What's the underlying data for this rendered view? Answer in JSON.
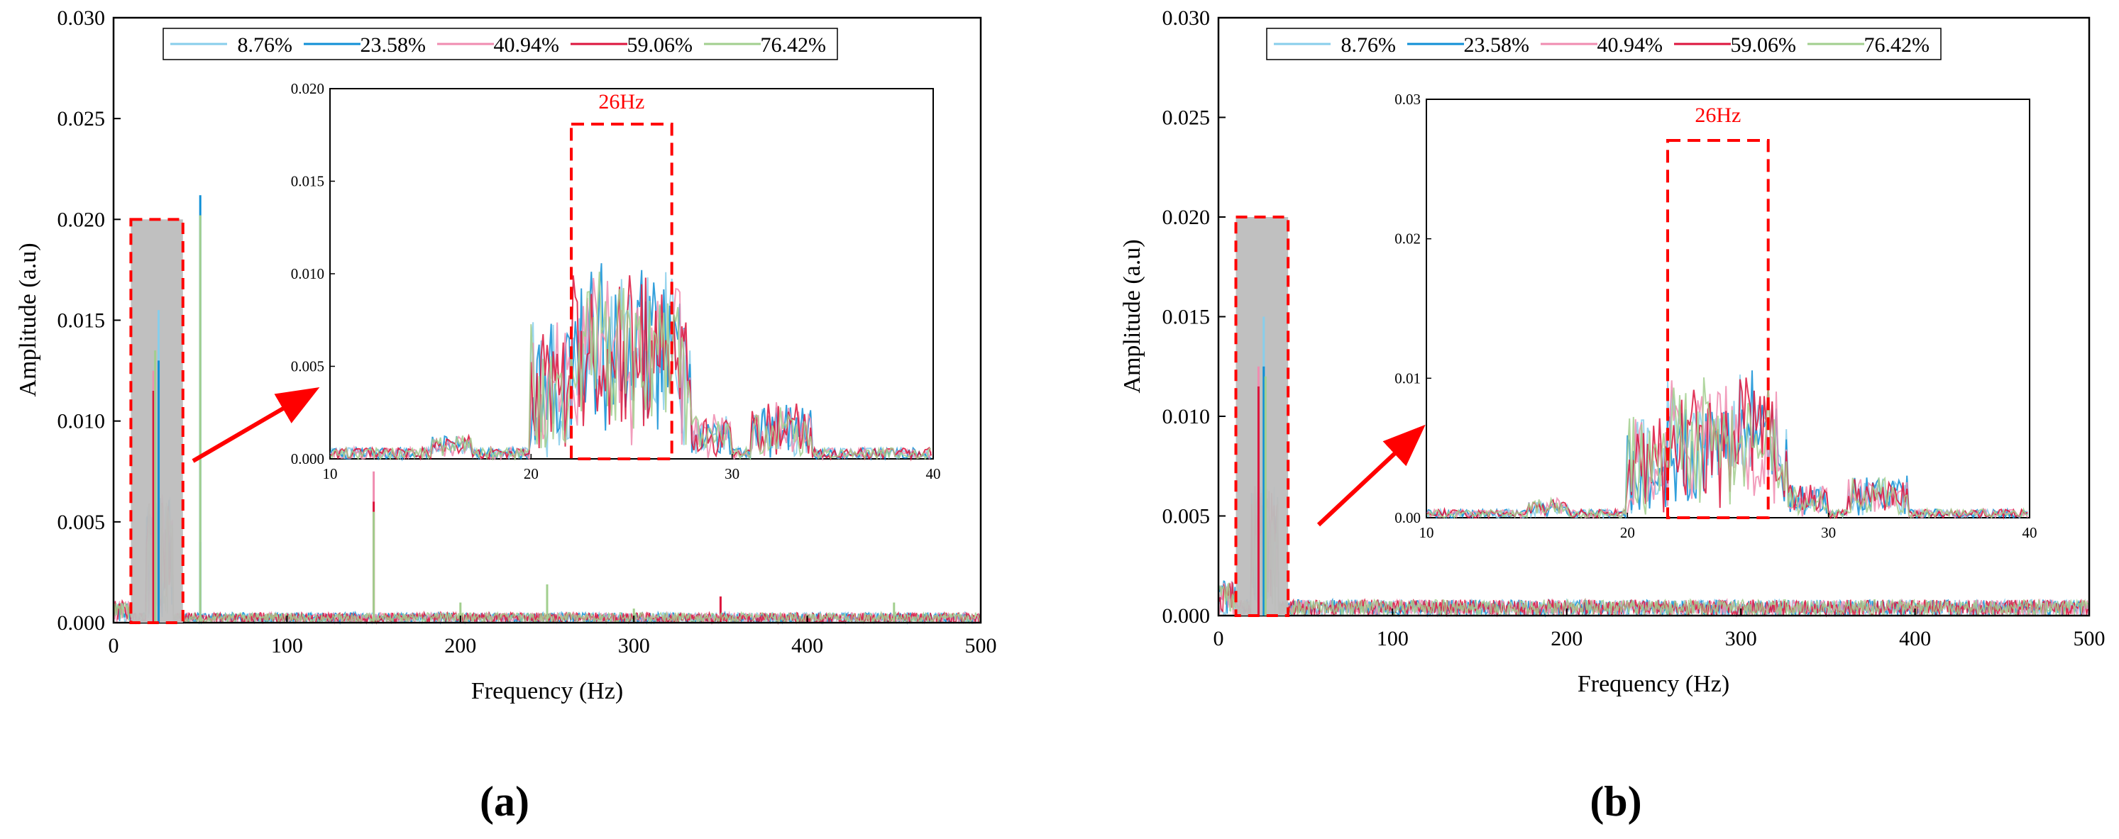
{
  "colors": {
    "series": [
      "#87CEEB",
      "#0F8FD6",
      "#F08CB0",
      "#DC143C",
      "#A2CF8E"
    ],
    "highlight_box": "#FF0000",
    "shade": "#BDBDBD",
    "arrow": "#FF0000",
    "axes": "#000000"
  },
  "legend_labels": [
    "8.76%",
    "23.58%",
    "40.94%",
    "59.06%",
    "76.42%"
  ],
  "panels": [
    {
      "label": "(a)",
      "xlabel": "Frequency (Hz)",
      "ylabel": "Amplitude (a.u)",
      "xticks": [
        "0",
        "100",
        "200",
        "300",
        "400",
        "500"
      ],
      "yticks": [
        "0.000",
        "0.005",
        "0.010",
        "0.015",
        "0.020",
        "0.025",
        "0.030"
      ],
      "inset": {
        "xticks": [
          "10",
          "20",
          "30",
          "40"
        ],
        "yticks": [
          "0.000",
          "0.005",
          "0.010",
          "0.015",
          "0.020"
        ],
        "annotation": "26Hz"
      }
    },
    {
      "label": "(b)",
      "xlabel": "Frequency (Hz)",
      "ylabel": "Amplitude (a.u)",
      "xticks": [
        "0",
        "100",
        "200",
        "300",
        "400",
        "500"
      ],
      "yticks": [
        "0.000",
        "0.005",
        "0.010",
        "0.015",
        "0.020",
        "0.025",
        "0.030"
      ],
      "inset": {
        "xticks": [
          "10",
          "20",
          "30",
          "40"
        ],
        "yticks": [
          "0.00",
          "0.01",
          "0.02",
          "0.03"
        ],
        "annotation": "26Hz"
      }
    }
  ],
  "chart_data": [
    {
      "type": "line",
      "title": "",
      "xlabel": "Frequency (Hz)",
      "ylabel": "Amplitude (a.u)",
      "xlim": [
        0,
        500
      ],
      "ylim": [
        0,
        0.03
      ],
      "legend": "top-left",
      "series_names": [
        "8.76%",
        "23.58%",
        "40.94%",
        "59.06%",
        "76.42%"
      ],
      "shaded_region": {
        "x": [
          10,
          40
        ],
        "y": [
          0,
          0.02
        ]
      },
      "peaks": [
        {
          "name": "8.76%",
          "points": [
            [
              26,
              0.0155
            ],
            [
              50,
              0.004
            ]
          ]
        },
        {
          "name": "23.58%",
          "points": [
            [
              26,
              0.013
            ],
            [
              50,
              0.0212
            ]
          ]
        },
        {
          "name": "40.94%",
          "points": [
            [
              23,
              0.0125
            ],
            [
              150,
              0.0075
            ]
          ]
        },
        {
          "name": "59.06%",
          "points": [
            [
              23,
              0.0115
            ],
            [
              150,
              0.006
            ],
            [
              350,
              0.0013
            ]
          ]
        },
        {
          "name": "76.42%",
          "points": [
            [
              24,
              0.0135
            ],
            [
              50,
              0.0202
            ],
            [
              150,
              0.0055
            ],
            [
              200,
              0.001
            ],
            [
              250,
              0.0019
            ],
            [
              300,
              0.0007
            ],
            [
              450,
              0.001
            ]
          ]
        }
      ],
      "baseline": [
        0,
        0.0005
      ],
      "inset": {
        "xlim": [
          10,
          40
        ],
        "ylim": [
          0,
          0.02
        ],
        "annotation": "26Hz",
        "box_x": [
          22,
          27
        ]
      }
    },
    {
      "type": "line",
      "title": "",
      "xlabel": "Frequency (Hz)",
      "ylabel": "Amplitude (a.u)",
      "xlim": [
        0,
        500
      ],
      "ylim": [
        0,
        0.03
      ],
      "legend": "top-left",
      "series_names": [
        "8.76%",
        "23.58%",
        "40.94%",
        "59.06%",
        "76.42%"
      ],
      "shaded_region": {
        "x": [
          10,
          40
        ],
        "y": [
          0,
          0.02
        ]
      },
      "peaks": [
        {
          "name": "8.76%",
          "points": [
            [
              26,
              0.015
            ]
          ]
        },
        {
          "name": "23.58%",
          "points": [
            [
              26,
              0.0125
            ]
          ]
        },
        {
          "name": "40.94%",
          "points": [
            [
              23,
              0.0125
            ]
          ]
        },
        {
          "name": "59.06%",
          "points": [
            [
              23,
              0.0115
            ]
          ]
        },
        {
          "name": "76.42%",
          "points": [
            [
              27,
              0.012
            ]
          ]
        }
      ],
      "baseline": [
        0,
        0.0008
      ],
      "inset": {
        "xlim": [
          10,
          40
        ],
        "ylim": [
          0,
          0.03
        ],
        "annotation": "26Hz",
        "box_x": [
          22,
          27
        ]
      }
    }
  ]
}
